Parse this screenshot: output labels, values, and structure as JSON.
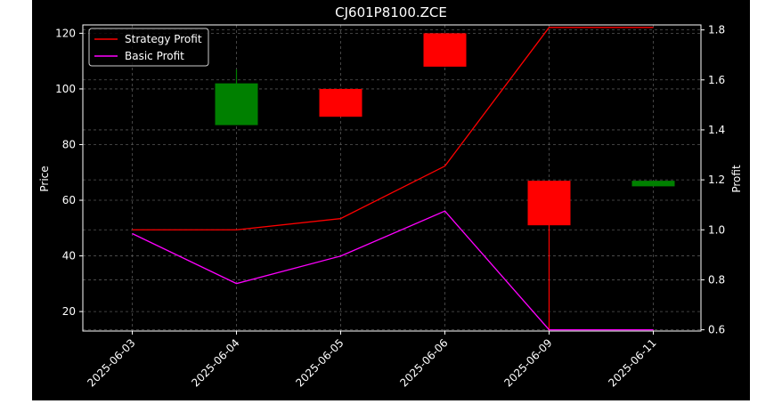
{
  "chart_data": {
    "type": "candlestick+line",
    "title": "CJ601P8100.ZCE",
    "xlabel": "",
    "ylabel_left": "Price",
    "ylabel_right": "Profit",
    "categories": [
      "2025-06-03",
      "2025-06-04",
      "2025-06-05",
      "2025-06-06",
      "2025-06-09",
      "2025-06-11"
    ],
    "price_ylim": [
      13,
      123
    ],
    "price_yticks": [
      20,
      40,
      60,
      80,
      100,
      120
    ],
    "profit_ylim": [
      0.595,
      1.82
    ],
    "profit_yticks": [
      0.6,
      0.8,
      1.0,
      1.2,
      1.4,
      1.6,
      1.8
    ],
    "candles": [
      {
        "date": "2025-06-03",
        "open": null,
        "high": null,
        "low": null,
        "close": null
      },
      {
        "date": "2025-06-04",
        "open": 87,
        "high": 107,
        "low": 87,
        "close": 102
      },
      {
        "date": "2025-06-05",
        "open": 100,
        "high": 100,
        "low": 90,
        "close": 90
      },
      {
        "date": "2025-06-06",
        "open": 120,
        "high": 120,
        "low": 108,
        "close": 108
      },
      {
        "date": "2025-06-09",
        "open": 67,
        "high": 67,
        "low": 13,
        "close": 51
      },
      {
        "date": "2025-06-11",
        "open": 65,
        "high": 67,
        "low": 65,
        "close": 67
      }
    ],
    "series": [
      {
        "name": "Strategy Profit",
        "color": "#ff0000",
        "values": [
          1.0,
          1.0,
          1.045,
          1.255,
          1.81,
          1.81
        ]
      },
      {
        "name": "Basic Profit",
        "color": "#ff00ff",
        "values": [
          0.985,
          0.785,
          0.895,
          1.075,
          0.6,
          0.6
        ]
      }
    ],
    "grid": true,
    "legend_position": "top-left",
    "colors": {
      "up": "#008000",
      "down": "#ff0000",
      "background": "#000000",
      "axes": "#ffffff",
      "grid": "#555555"
    }
  }
}
